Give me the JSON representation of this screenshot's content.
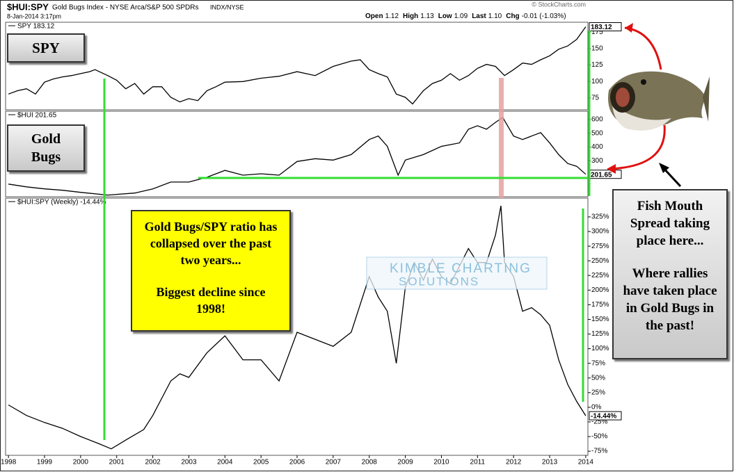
{
  "header": {
    "symbol": "$HUI:SPY",
    "description": "Gold Bugs Index - NYSE Arca/S&P 500 SPDRs",
    "exchange": "INDX/NYSE",
    "date": "8-Jan-2014 3:17pm",
    "quote": [
      {
        "name": "Open",
        "value": "1.12"
      },
      {
        "name": "High",
        "value": "1.13"
      },
      {
        "name": "Low",
        "value": "1.09"
      },
      {
        "name": "Last",
        "value": "1.10"
      },
      {
        "name": "Chg",
        "value": "-0.01 (-1.03%)"
      }
    ],
    "credit": "© StockCharts.com"
  },
  "annotations": {
    "spy_box": "SPY",
    "gold_box": "Gold Bugs",
    "yellow_box": [
      "Gold Bugs/SPY ratio has collapsed over the past two years...",
      "Biggest decline since 1998!"
    ],
    "gray_box": [
      "Fish Mouth Spread taking place here...",
      "Where rallies have taken place in Gold Bugs in the past!"
    ],
    "watermark": [
      "KIMBLE CHARTING",
      "SOLUTIONS"
    ]
  },
  "chart_data": [
    {
      "type": "line",
      "xlim": [
        1997.92,
        2014.06
      ],
      "ylim": [
        57,
        190
      ],
      "yticks": [
        75,
        100,
        125,
        150,
        175
      ],
      "x": [
        1998,
        1998.25,
        1998.5,
        1998.75,
        1999,
        1999.25,
        1999.5,
        1999.75,
        2000,
        2000.25,
        2000.4,
        2000.75,
        2001,
        2001.25,
        2001.5,
        2001.75,
        2002,
        2002.25,
        2002.5,
        2002.75,
        2003,
        2003.25,
        2003.5,
        2003.75,
        2004,
        2004.5,
        2005,
        2005.5,
        2006,
        2006.5,
        2007,
        2007.5,
        2007.75,
        2008,
        2008.25,
        2008.5,
        2008.75,
        2009,
        2009.2,
        2009.5,
        2009.75,
        2010,
        2010.25,
        2010.5,
        2010.75,
        2011,
        2011.25,
        2011.5,
        2011.75,
        2012,
        2012.25,
        2012.5,
        2012.75,
        2013,
        2013.25,
        2013.5,
        2013.75,
        2014
      ],
      "series": [
        {
          "name": "SPY 183.12",
          "color": "#000000",
          "values": [
            81,
            86,
            89,
            81,
            99,
            104,
            107,
            109,
            112,
            115,
            118,
            109,
            102,
            89,
            97,
            81,
            92,
            92,
            76,
            69,
            74,
            71,
            86,
            92,
            99,
            100,
            105,
            108,
            115,
            109,
            123,
            131,
            133,
            118,
            112,
            107,
            81,
            76,
            66,
            86,
            97,
            102,
            112,
            102,
            109,
            120,
            126,
            123,
            109,
            118,
            128,
            126,
            133,
            139,
            149,
            154,
            164,
            183.12
          ]
        }
      ]
    },
    {
      "type": "line",
      "xlim": [
        1997.92,
        2014.06
      ],
      "ylim": [
        38,
        661
      ],
      "yticks": [
        300,
        400,
        500,
        600
      ],
      "x": [
        1998,
        1998.5,
        1999,
        1999.5,
        2000,
        2000.75,
        2001.5,
        2002,
        2002.5,
        2003,
        2003.5,
        2004,
        2004.5,
        2005,
        2005.5,
        2006,
        2006.5,
        2007,
        2007.5,
        2008,
        2008.25,
        2008.5,
        2008.8,
        2009,
        2009.5,
        2010,
        2010.5,
        2010.75,
        2011,
        2011.25,
        2011.5,
        2011.7,
        2012,
        2012.25,
        2012.5,
        2012.75,
        2013,
        2013.25,
        2013.5,
        2013.75,
        2014
      ],
      "series": [
        {
          "name": "$HUI 201.65",
          "color": "#000000",
          "values": [
            130,
            110,
            95,
            85,
            70,
            50,
            65,
            95,
            145,
            145,
            180,
            230,
            195,
            205,
            195,
            295,
            315,
            305,
            345,
            455,
            480,
            405,
            195,
            305,
            345,
            405,
            430,
            530,
            555,
            530,
            580,
            615,
            480,
            455,
            480,
            505,
            430,
            345,
            280,
            260,
            201.65
          ]
        }
      ]
    },
    {
      "type": "line",
      "xlim": [
        1997.92,
        2014.06
      ],
      "ylim": [
        -82,
        357
      ],
      "yticks": [
        {
          "value": -75,
          "label": "-75%"
        },
        {
          "value": -50,
          "label": "-50%"
        },
        {
          "value": -25,
          "label": "-25%"
        },
        {
          "value": 0,
          "label": "0%"
        },
        {
          "value": 25,
          "label": "25%"
        },
        {
          "value": 50,
          "label": "50%"
        },
        {
          "value": 75,
          "label": "75%"
        },
        {
          "value": 100,
          "label": "100%"
        },
        {
          "value": 125,
          "label": "125%"
        },
        {
          "value": 150,
          "label": "150%"
        },
        {
          "value": 175,
          "label": "175%"
        },
        {
          "value": 200,
          "label": "200%"
        },
        {
          "value": 225,
          "label": "225%"
        },
        {
          "value": 250,
          "label": "250%"
        },
        {
          "value": 275,
          "label": "275%"
        },
        {
          "value": 300,
          "label": "300%"
        },
        {
          "value": 325,
          "label": "325%"
        }
      ],
      "xticks": [
        1998,
        1999,
        2000,
        2001,
        2002,
        2003,
        2004,
        2005,
        2006,
        2007,
        2008,
        2009,
        2010,
        2011,
        2012,
        2013,
        2014
      ],
      "x": [
        1998,
        1998.5,
        1999,
        1999.5,
        2000,
        2000.5,
        2000.85,
        2001.25,
        2001.75,
        2002,
        2002.5,
        2002.75,
        2003,
        2003.5,
        2004,
        2004.5,
        2005,
        2005.5,
        2006,
        2006.5,
        2007,
        2007.5,
        2008,
        2008.25,
        2008.5,
        2008.75,
        2009,
        2009.25,
        2009.5,
        2009.75,
        2010,
        2010.25,
        2010.5,
        2010.75,
        2011,
        2011.25,
        2011.5,
        2011.65,
        2011.75,
        2012,
        2012.25,
        2012.5,
        2012.75,
        2013,
        2013.25,
        2013.5,
        2013.75,
        2014
      ],
      "series": [
        {
          "name": "$HUI:SPY (Weekly) -14.44%",
          "color": "#000000",
          "last_label": "-14.44%",
          "values": [
            4,
            -14,
            -26,
            -36,
            -50,
            -62,
            -71,
            -56,
            -38,
            -14,
            45,
            57,
            51,
            93,
            122,
            81,
            81,
            45,
            128,
            116,
            104,
            128,
            223,
            188,
            164,
            75,
            205,
            247,
            217,
            253,
            223,
            211,
            241,
            271,
            247,
            247,
            294,
            344,
            247,
            223,
            164,
            170,
            158,
            140,
            81,
            39,
            10,
            -14.44
          ]
        }
      ]
    }
  ]
}
